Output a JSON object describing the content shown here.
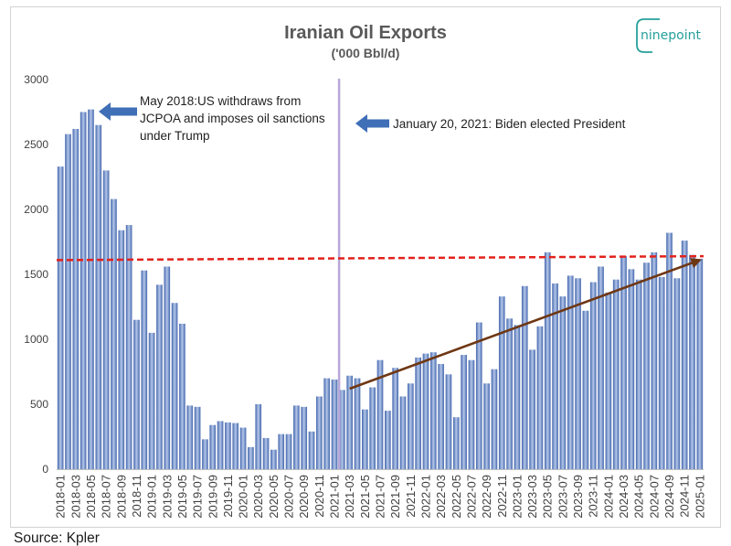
{
  "source": "Source: Kpler",
  "logo": {
    "text": "ninepoint",
    "color": "#26a09b"
  },
  "chart_data": {
    "type": "bar",
    "title": "Iranian Oil Exports",
    "subtitle": "('000 Bbl/d)",
    "xlabel": "",
    "ylabel": "",
    "ylim": [
      0,
      3000
    ],
    "y_ticks": [
      0,
      500,
      1000,
      1500,
      2000,
      2500,
      3000
    ],
    "grid": false,
    "bar_color": "#4466ad",
    "bar_highlight": "#b4c7e9",
    "categories": [
      "2018-01",
      "2018-02",
      "2018-03",
      "2018-04",
      "2018-05",
      "2018-06",
      "2018-07",
      "2018-08",
      "2018-09",
      "2018-10",
      "2018-11",
      "2018-12",
      "2019-01",
      "2019-02",
      "2019-03",
      "2019-04",
      "2019-05",
      "2019-06",
      "2019-07",
      "2019-08",
      "2019-09",
      "2019-10",
      "2019-11",
      "2019-12",
      "2020-01",
      "2020-02",
      "2020-03",
      "2020-04",
      "2020-05",
      "2020-06",
      "2020-07",
      "2020-08",
      "2020-09",
      "2020-10",
      "2020-11",
      "2020-12",
      "2021-01",
      "2021-02",
      "2021-03",
      "2021-04",
      "2021-05",
      "2021-06",
      "2021-07",
      "2021-08",
      "2021-09",
      "2021-10",
      "2021-11",
      "2021-12",
      "2022-01",
      "2022-02",
      "2022-03",
      "2022-04",
      "2022-05",
      "2022-06",
      "2022-07",
      "2022-08",
      "2022-09",
      "2022-10",
      "2022-11",
      "2022-12",
      "2023-01",
      "2023-02",
      "2023-03",
      "2023-04",
      "2023-05",
      "2023-06",
      "2023-07",
      "2023-08",
      "2023-09",
      "2023-10",
      "2023-11",
      "2023-12",
      "2024-01",
      "2024-02",
      "2024-03",
      "2024-04",
      "2024-05",
      "2024-06",
      "2024-07",
      "2024-08",
      "2024-09",
      "2024-10",
      "2024-11",
      "2024-12",
      "2025-01"
    ],
    "values": [
      2330,
      2580,
      2620,
      2750,
      2770,
      2650,
      2300,
      2080,
      1840,
      1880,
      1150,
      1530,
      1050,
      1420,
      1560,
      1280,
      1120,
      490,
      480,
      230,
      340,
      370,
      360,
      355,
      320,
      170,
      500,
      240,
      150,
      270,
      270,
      490,
      480,
      290,
      560,
      700,
      690,
      610,
      720,
      700,
      460,
      630,
      840,
      450,
      780,
      560,
      660,
      860,
      890,
      900,
      810,
      730,
      400,
      880,
      840,
      1130,
      660,
      770,
      1330,
      1160,
      1110,
      1410,
      920,
      1100,
      1670,
      1430,
      1330,
      1490,
      1470,
      1220,
      1440,
      1560,
      1360,
      1460,
      1640,
      1540,
      1460,
      1590,
      1670,
      1480,
      1820,
      1470,
      1760,
      1650,
      1620
    ],
    "reference_line": {
      "x_start": "2018-01",
      "y_start": 1610,
      "x_end": "2025-01",
      "y_end": 1640,
      "color": "#e3221c"
    },
    "trend_line": {
      "x_start": "2021-03",
      "y_start": 620,
      "x_end": "2025-01",
      "y_end": 1610,
      "color": "#6e3713"
    },
    "event_marker": {
      "date": "2021-01-20",
      "color": "#b9a7d8"
    },
    "annotations": [
      {
        "lines": [
          "May 2018:US withdraws from",
          "JCPOA and imposes oil sanctions",
          "under Trump"
        ],
        "arrow_color": "#3f6fb6"
      },
      {
        "lines": [
          "January 20, 2021: Biden elected President"
        ],
        "arrow_color": "#3f6fb6"
      }
    ]
  }
}
